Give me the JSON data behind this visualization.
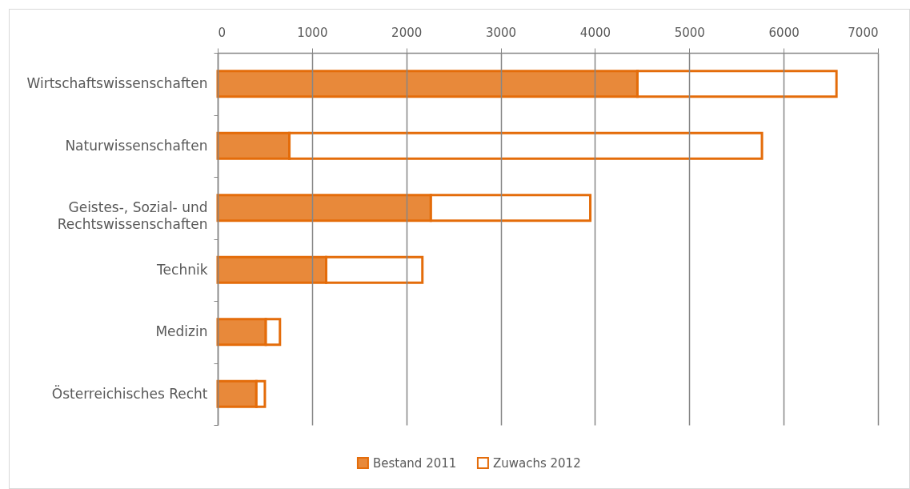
{
  "chart_data": {
    "type": "bar",
    "orientation": "horizontal",
    "stacked": true,
    "categories": [
      "Wirtschaftswissenschaften",
      "Naturwissenschaften",
      "Geistes-, Sozial- und Rechtswissenschaften",
      "Technik",
      "Medizin",
      "Österreichisches Recht"
    ],
    "series": [
      {
        "name": "Bestand 2011",
        "color": "#e8893a",
        "values": [
          4450,
          760,
          2260,
          1150,
          510,
          410
        ]
      },
      {
        "name": "Zuwachs 2012",
        "color": "#ffffff",
        "values": [
          2110,
          5010,
          1690,
          1020,
          150,
          90
        ]
      }
    ],
    "xlim": [
      0,
      7000
    ],
    "xticks": [
      0,
      1000,
      2000,
      3000,
      4000,
      5000,
      6000,
      7000
    ],
    "grid": "x",
    "legend": "bottom"
  }
}
